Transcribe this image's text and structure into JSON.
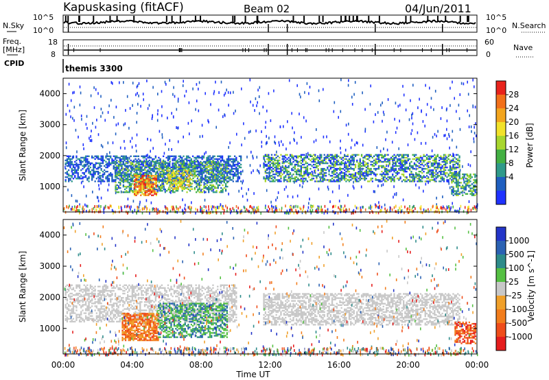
{
  "header": {
    "station": "Kapuskasing (fitACF)",
    "beam": "Beam 02",
    "date": "04/Jun/2011"
  },
  "noise_panel": {
    "left_label": "N.Sky",
    "right_label": "N.Search",
    "left_ticks": [
      "10^5",
      "10^0"
    ],
    "right_ticks": [
      "10^5",
      "10^0"
    ]
  },
  "freq_panel": {
    "left_label_1": "Freq.",
    "left_label_2": "[MHz]",
    "right_label": "Nave",
    "left_ticks": [
      "18",
      "8"
    ],
    "right_ticks": [
      "60",
      "0"
    ]
  },
  "cpid": {
    "label": "CPID",
    "value": "themis 3300"
  },
  "time_axis": {
    "label": "Time UT",
    "ticks": [
      "00:00",
      "04:00",
      "08:00",
      "12:00",
      "16:00",
      "20:00",
      "00:00"
    ]
  },
  "power_panel": {
    "ylabel": "Slant Range [km]",
    "yticks": [
      "1000",
      "2000",
      "3000",
      "4000"
    ],
    "colorbar_label": "Power [dB]",
    "colorbar_ticks": [
      "4",
      "8",
      "12",
      "16",
      "20",
      "24",
      "28"
    ],
    "colors": [
      "#1f32ff",
      "#1f5fc0",
      "#2f9a8a",
      "#43b043",
      "#a8d62e",
      "#f2e22a",
      "#f3a51e",
      "#f2701a",
      "#e8231c"
    ]
  },
  "velocity_panel": {
    "ylabel": "Slant Range [km]",
    "yticks": [
      "1000",
      "2000",
      "3000",
      "4000"
    ],
    "colorbar_label": "Velocity [m s^-1]",
    "colorbar_ticks": [
      "1000",
      "500",
      "100",
      "25",
      "-25",
      "-100",
      "-500",
      "-1000"
    ],
    "colors": [
      "#2335c8",
      "#2b62b3",
      "#2d8b8a",
      "#55c043",
      "#c8c8c8",
      "#f0a02a",
      "#f27d1c",
      "#ef4d1a",
      "#e51d1d"
    ]
  },
  "chart_data": {
    "type": "heatmap",
    "x_range_hours": [
      0,
      24
    ],
    "y_range_km": [
      180,
      4500
    ],
    "power_regions": [
      {
        "t": [
          0.1,
          10.3
        ],
        "r": [
          1150,
          2000
        ],
        "level": "low"
      },
      {
        "t": [
          3.0,
          9.5
        ],
        "r": [
          700,
          1800
        ],
        "level": "mid"
      },
      {
        "t": [
          4.1,
          5.4
        ],
        "r": [
          700,
          1400
        ],
        "level": "high"
      },
      {
        "t": [
          11.6,
          23.0
        ],
        "r": [
          1200,
          2000
        ],
        "level": "low-mid"
      },
      {
        "t": [
          22.5,
          24.0
        ],
        "r": [
          700,
          1400
        ],
        "level": "mid"
      }
    ],
    "velocity_regions": [
      {
        "t": [
          0.1,
          10.0
        ],
        "r": [
          1200,
          2400
        ],
        "v": "ground (~0)"
      },
      {
        "t": [
          3.4,
          5.5
        ],
        "r": [
          600,
          1500
        ],
        "v": "-100 to -500"
      },
      {
        "t": [
          5.5,
          9.5
        ],
        "r": [
          700,
          1800
        ],
        "v": "100 to 500"
      },
      {
        "t": [
          11.6,
          23.0
        ],
        "r": [
          1100,
          2100
        ],
        "v": "ground (~0)"
      },
      {
        "t": [
          22.7,
          23.9
        ],
        "r": [
          500,
          1200
        ],
        "v": "-500 to -1000"
      }
    ]
  }
}
